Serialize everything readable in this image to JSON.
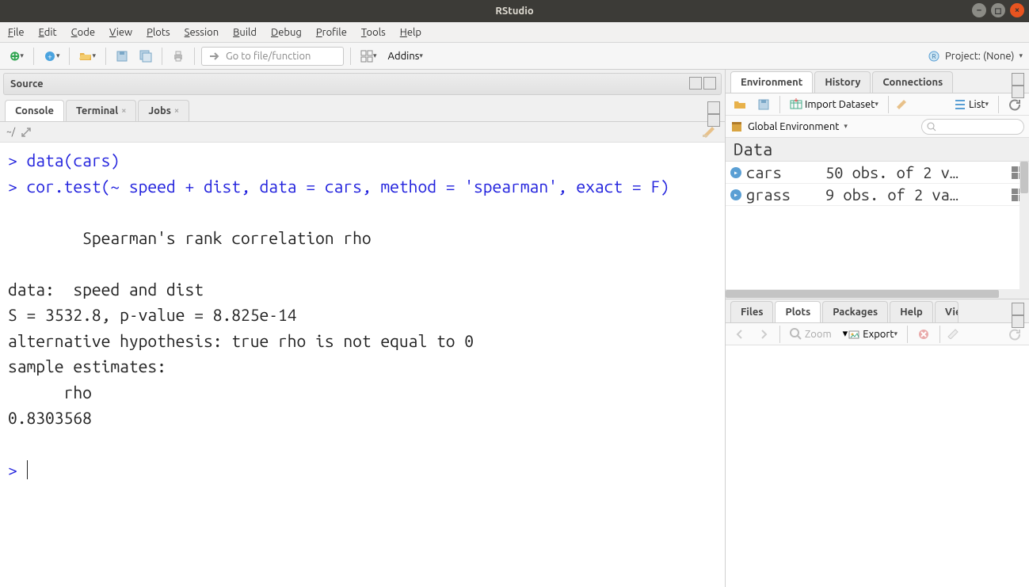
{
  "window": {
    "title": "RStudio"
  },
  "menubar": [
    "File",
    "Edit",
    "Code",
    "View",
    "Plots",
    "Session",
    "Build",
    "Debug",
    "Profile",
    "Tools",
    "Help"
  ],
  "toolbar": {
    "goto_placeholder": "Go to file/function",
    "addins_label": "Addins",
    "project_label": "Project: (None)"
  },
  "left": {
    "source_label": "Source",
    "tabs": {
      "console": "Console",
      "terminal": "Terminal",
      "jobs": "Jobs"
    },
    "console_path": "~/",
    "console_lines": [
      {
        "type": "prompt",
        "text": "> data(cars)"
      },
      {
        "type": "prompt",
        "text": "> cor.test(~ speed + dist, data = cars, method = 'spearman', exact = F)"
      },
      {
        "type": "out",
        "text": ""
      },
      {
        "type": "out",
        "text": "\tSpearman's rank correlation rho"
      },
      {
        "type": "out",
        "text": ""
      },
      {
        "type": "out",
        "text": "data:  speed and dist"
      },
      {
        "type": "out",
        "text": "S = 3532.8, p-value = 8.825e-14"
      },
      {
        "type": "out",
        "text": "alternative hypothesis: true rho is not equal to 0"
      },
      {
        "type": "out",
        "text": "sample estimates:"
      },
      {
        "type": "out",
        "text": "      rho "
      },
      {
        "type": "out",
        "text": "0.8303568 "
      },
      {
        "type": "out",
        "text": ""
      },
      {
        "type": "prompt",
        "text": "> "
      }
    ]
  },
  "right_top": {
    "tabs": [
      "Environment",
      "History",
      "Connections"
    ],
    "active_tab": 0,
    "import_label": "Import Dataset",
    "view_label": "List",
    "scope_label": "Global Environment",
    "section_label": "Data",
    "rows": [
      {
        "name": "cars",
        "desc": "50 obs. of 2 v…"
      },
      {
        "name": "grass",
        "desc": "9 obs. of 2 va…"
      }
    ]
  },
  "right_bottom": {
    "tabs": [
      "Files",
      "Plots",
      "Packages",
      "Help",
      "Viewer"
    ],
    "active_tab": 1,
    "zoom_label": "Zoom",
    "export_label": "Export"
  }
}
